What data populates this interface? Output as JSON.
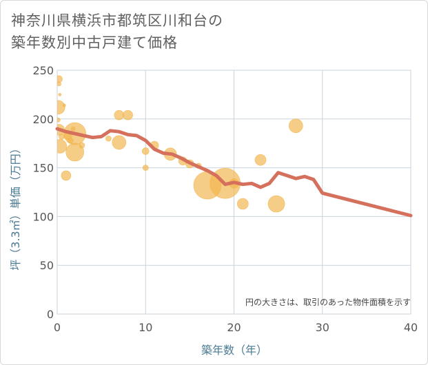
{
  "title_line1": "神奈川県横浜市都筑区川和台の",
  "title_line2": "築年数別中古戸建て価格",
  "chart_data": {
    "type": "scatter",
    "title": "神奈川県横浜市都筑区川和台の築年数別中古戸建て価格",
    "xlabel": "築年数（年）",
    "ylabel": "坪（3.3㎡）単価（万円）",
    "xlim": [
      0,
      40
    ],
    "ylim": [
      0,
      250
    ],
    "xticks": [
      0,
      10,
      20,
      30,
      40
    ],
    "yticks": [
      0,
      50,
      100,
      150,
      200,
      250
    ],
    "grid": true,
    "note": "円の大きさは、取引のあった物件面積を示す",
    "bubbles": [
      {
        "x": 0.2,
        "y": 241,
        "s": 5
      },
      {
        "x": 0.2,
        "y": 236,
        "s": 3
      },
      {
        "x": 0.3,
        "y": 225,
        "s": 2
      },
      {
        "x": 0.1,
        "y": 212,
        "s": 10
      },
      {
        "x": 0.8,
        "y": 214,
        "s": 2
      },
      {
        "x": 0.1,
        "y": 199,
        "s": 3
      },
      {
        "x": 0.2,
        "y": 189,
        "s": 8
      },
      {
        "x": 0.5,
        "y": 182,
        "s": 4
      },
      {
        "x": 0.3,
        "y": 172,
        "s": 10
      },
      {
        "x": 1.2,
        "y": 183,
        "s": 6
      },
      {
        "x": 1.5,
        "y": 178,
        "s": 4
      },
      {
        "x": 1.8,
        "y": 190,
        "s": 3
      },
      {
        "x": 2.0,
        "y": 185,
        "s": 16
      },
      {
        "x": 2.0,
        "y": 166,
        "s": 13
      },
      {
        "x": 2.8,
        "y": 173,
        "s": 4
      },
      {
        "x": 1.0,
        "y": 142,
        "s": 7
      },
      {
        "x": 5.8,
        "y": 180,
        "s": 4
      },
      {
        "x": 7.0,
        "y": 176,
        "s": 10
      },
      {
        "x": 7.0,
        "y": 204,
        "s": 7
      },
      {
        "x": 8.0,
        "y": 204,
        "s": 7
      },
      {
        "x": 10.0,
        "y": 167,
        "s": 5
      },
      {
        "x": 10.0,
        "y": 150,
        "s": 4
      },
      {
        "x": 11.0,
        "y": 173,
        "s": 6
      },
      {
        "x": 12.8,
        "y": 164,
        "s": 9
      },
      {
        "x": 14.2,
        "y": 157,
        "s": 6
      },
      {
        "x": 15.0,
        "y": 154,
        "s": 6
      },
      {
        "x": 16.0,
        "y": 152,
        "s": 4
      },
      {
        "x": 17.0,
        "y": 132,
        "s": 20
      },
      {
        "x": 19.0,
        "y": 134,
        "s": 22
      },
      {
        "x": 20.0,
        "y": 134,
        "s": 7
      },
      {
        "x": 21.0,
        "y": 113,
        "s": 8
      },
      {
        "x": 23.0,
        "y": 158,
        "s": 8
      },
      {
        "x": 24.8,
        "y": 113,
        "s": 12
      },
      {
        "x": 27.0,
        "y": 193,
        "s": 10
      }
    ],
    "trend": {
      "x": [
        0,
        1,
        2,
        3,
        4,
        5,
        6,
        7,
        8,
        9,
        10,
        11,
        12,
        13,
        14,
        15,
        16,
        17,
        18,
        19,
        20,
        21,
        22,
        23,
        24,
        25,
        26,
        27,
        28,
        29,
        30,
        40
      ],
      "y": [
        190,
        187,
        185,
        183,
        181,
        182,
        188,
        187,
        184,
        183,
        178,
        169,
        165,
        164,
        160,
        155,
        151,
        147,
        142,
        133,
        135,
        133,
        134,
        130,
        134,
        145,
        142,
        139,
        141,
        138,
        124,
        101
      ]
    },
    "colors": {
      "bubble": "#f2b54e",
      "trend": "#d4705c",
      "grid": "#c9d3dc",
      "plot_bg": "#ffffff"
    }
  }
}
